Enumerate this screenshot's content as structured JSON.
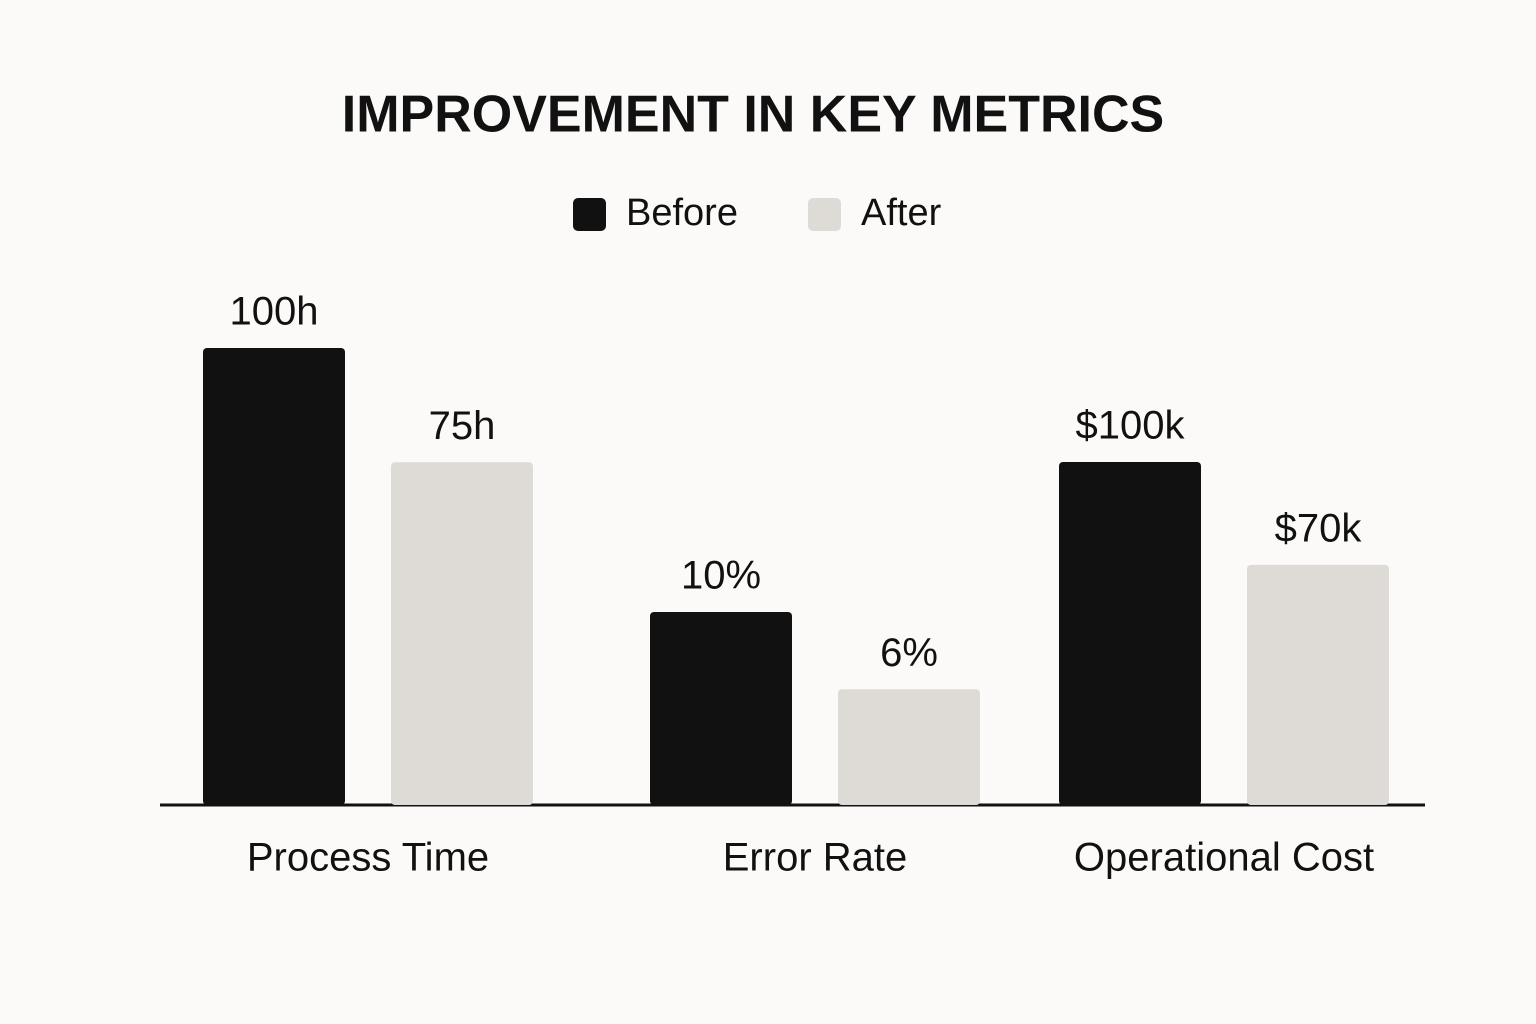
{
  "chart_data": {
    "type": "bar",
    "title": "IMPROVEMENT IN KEY METRICS",
    "categories": [
      "Process Time",
      "Error Rate",
      "Operational Cost"
    ],
    "series": [
      {
        "name": "Before",
        "color": "#111111",
        "values": [
          100,
          10,
          100000
        ],
        "value_labels": [
          "100h",
          "10%",
          "$100k"
        ]
      },
      {
        "name": "After",
        "color": "#dedbd7",
        "values": [
          75,
          6,
          70000
        ],
        "value_labels": [
          "75h",
          "6%",
          "$70k"
        ]
      }
    ]
  }
}
